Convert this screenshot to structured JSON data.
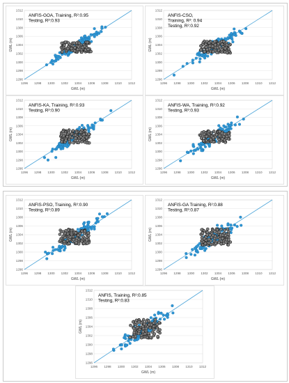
{
  "colors": {
    "training": "#2e96d4",
    "testing": "#7f7f7f",
    "testing_edge": "#1a1a1a",
    "fit_line": "#4aa3d8"
  },
  "chart_data": [
    {
      "type": "scatter",
      "title": "",
      "line1": "ANFIS-GOA, Training, R²:0.95",
      "line2": "",
      "line3": "Testing, R²:0.93",
      "xlabel": "GWL (m)",
      "ylabel": "GWL (m)",
      "xlim": [
        1296,
        1312
      ],
      "ylim": [
        1296,
        1312
      ],
      "xticks": [
        "1296",
        "1298",
        "1300",
        "1302",
        "1304",
        "1306",
        "1308",
        "1310",
        "1312"
      ],
      "yticks": [
        "1296",
        "1298",
        "1300",
        "1302",
        "1304",
        "1306",
        "1308",
        "1310",
        "1312"
      ],
      "grid": true,
      "reference_line": "y = x",
      "training_spread": 0.9,
      "testing_spread": 0.7
    },
    {
      "type": "scatter",
      "title": "",
      "line1": "ANFIS-CSO,",
      "line2": "Training, R²: 0.94",
      "line3": "Testing, R²:0.92",
      "xlabel": "GWL (m)",
      "ylabel": "GWL (m)",
      "xlim": [
        1296,
        1312
      ],
      "ylim": [
        1296,
        1312
      ],
      "xticks": [
        "1296",
        "1298",
        "1300",
        "1302",
        "1304",
        "1306",
        "1308",
        "1310",
        "1312"
      ],
      "yticks": [
        "1296",
        "1298",
        "1300",
        "1302",
        "1304",
        "1306",
        "1308",
        "1310",
        "1312"
      ],
      "grid": true,
      "reference_line": "y = x",
      "training_spread": 1.0,
      "testing_spread": 0.8
    },
    {
      "type": "scatter",
      "title": "",
      "line1": "ANFIS-KA, Training, R²:0.93",
      "line2": "",
      "line3": "Testing, R²:0.90",
      "xlabel": "GWL (m)",
      "ylabel": "GWL (m)",
      "xlim": [
        1296,
        1312
      ],
      "ylim": [
        1296,
        1312
      ],
      "xticks": [
        "1296",
        "1298",
        "1300",
        "1302",
        "1304",
        "1306",
        "1308",
        "1310",
        "1312"
      ],
      "yticks": [
        "1296",
        "1298",
        "1300",
        "1302",
        "1304",
        "1306",
        "1308",
        "1310",
        "1312"
      ],
      "grid": true,
      "reference_line": "y = x",
      "training_spread": 1.1,
      "testing_spread": 0.9
    },
    {
      "type": "scatter",
      "title": "",
      "line1": "ANFIS-WA, Training, R²:0.92",
      "line2": "",
      "line3": "Testing, R²:0.93",
      "xlabel": "GWL (m)",
      "ylabel": "GWL (m)",
      "xlim": [
        1296,
        1312
      ],
      "ylim": [
        1296,
        1312
      ],
      "xticks": [
        "1296",
        "1298",
        "1300",
        "1302",
        "1304",
        "1306",
        "1308",
        "1310",
        "1312"
      ],
      "yticks": [
        "1296",
        "1298",
        "1300",
        "1302",
        "1304",
        "1306",
        "1308",
        "1310",
        "1312"
      ],
      "grid": true,
      "reference_line": "y = x",
      "training_spread": 1.2,
      "testing_spread": 0.8
    },
    {
      "type": "scatter",
      "title": "",
      "line1": "ANFIS-PSO, Training, R²:0.90",
      "line2": "",
      "line3": "Testing, R²:0.89",
      "xlabel": "GWL (m)",
      "ylabel": "GWL (m)",
      "xlim": [
        1296,
        1312
      ],
      "ylim": [
        1296,
        1312
      ],
      "xticks": [
        "1296",
        "1298",
        "1300",
        "1302",
        "1304",
        "1306",
        "1308",
        "1310",
        "1312"
      ],
      "yticks": [
        "1296",
        "1298",
        "1300",
        "1302",
        "1304",
        "1306",
        "1308",
        "1310",
        "1312"
      ],
      "grid": true,
      "reference_line": "y = x",
      "training_spread": 1.3,
      "testing_spread": 1.0
    },
    {
      "type": "scatter",
      "title": "",
      "line1": "ANFIS-GA Training, R²:0.88",
      "line2": "",
      "line3": "Testing, R²:0.87",
      "xlabel": "GWL (m)",
      "ylabel": "GWL (m)",
      "xlim": [
        1296,
        1312
      ],
      "ylim": [
        1296,
        1312
      ],
      "xticks": [
        "1296",
        "1298",
        "1300",
        "1302",
        "1304",
        "1306",
        "1308",
        "1310",
        "1312"
      ],
      "yticks": [
        "1296",
        "1298",
        "1300",
        "1302",
        "1304",
        "1306",
        "1308",
        "1310",
        "1312"
      ],
      "grid": true,
      "reference_line": "y = x",
      "training_spread": 1.4,
      "testing_spread": 1.1
    },
    {
      "type": "scatter",
      "title": "",
      "line1": "ANFIS, Training, R²:0.85",
      "line2": "",
      "line3": "Testing, R²:0.83",
      "xlabel": "GWL (m)",
      "ylabel": "GWL (m)",
      "xlim": [
        1296,
        1312
      ],
      "ylim": [
        1296,
        1312
      ],
      "xticks": [
        "1296",
        "1298",
        "1300",
        "1302",
        "1304",
        "1306",
        "1308",
        "1310",
        "1312"
      ],
      "yticks": [
        "1296",
        "1298",
        "1300",
        "1302",
        "1304",
        "1306",
        "1308",
        "1310",
        "1312"
      ],
      "grid": true,
      "reference_line": "y = x",
      "training_spread": 1.6,
      "testing_spread": 1.2
    }
  ]
}
